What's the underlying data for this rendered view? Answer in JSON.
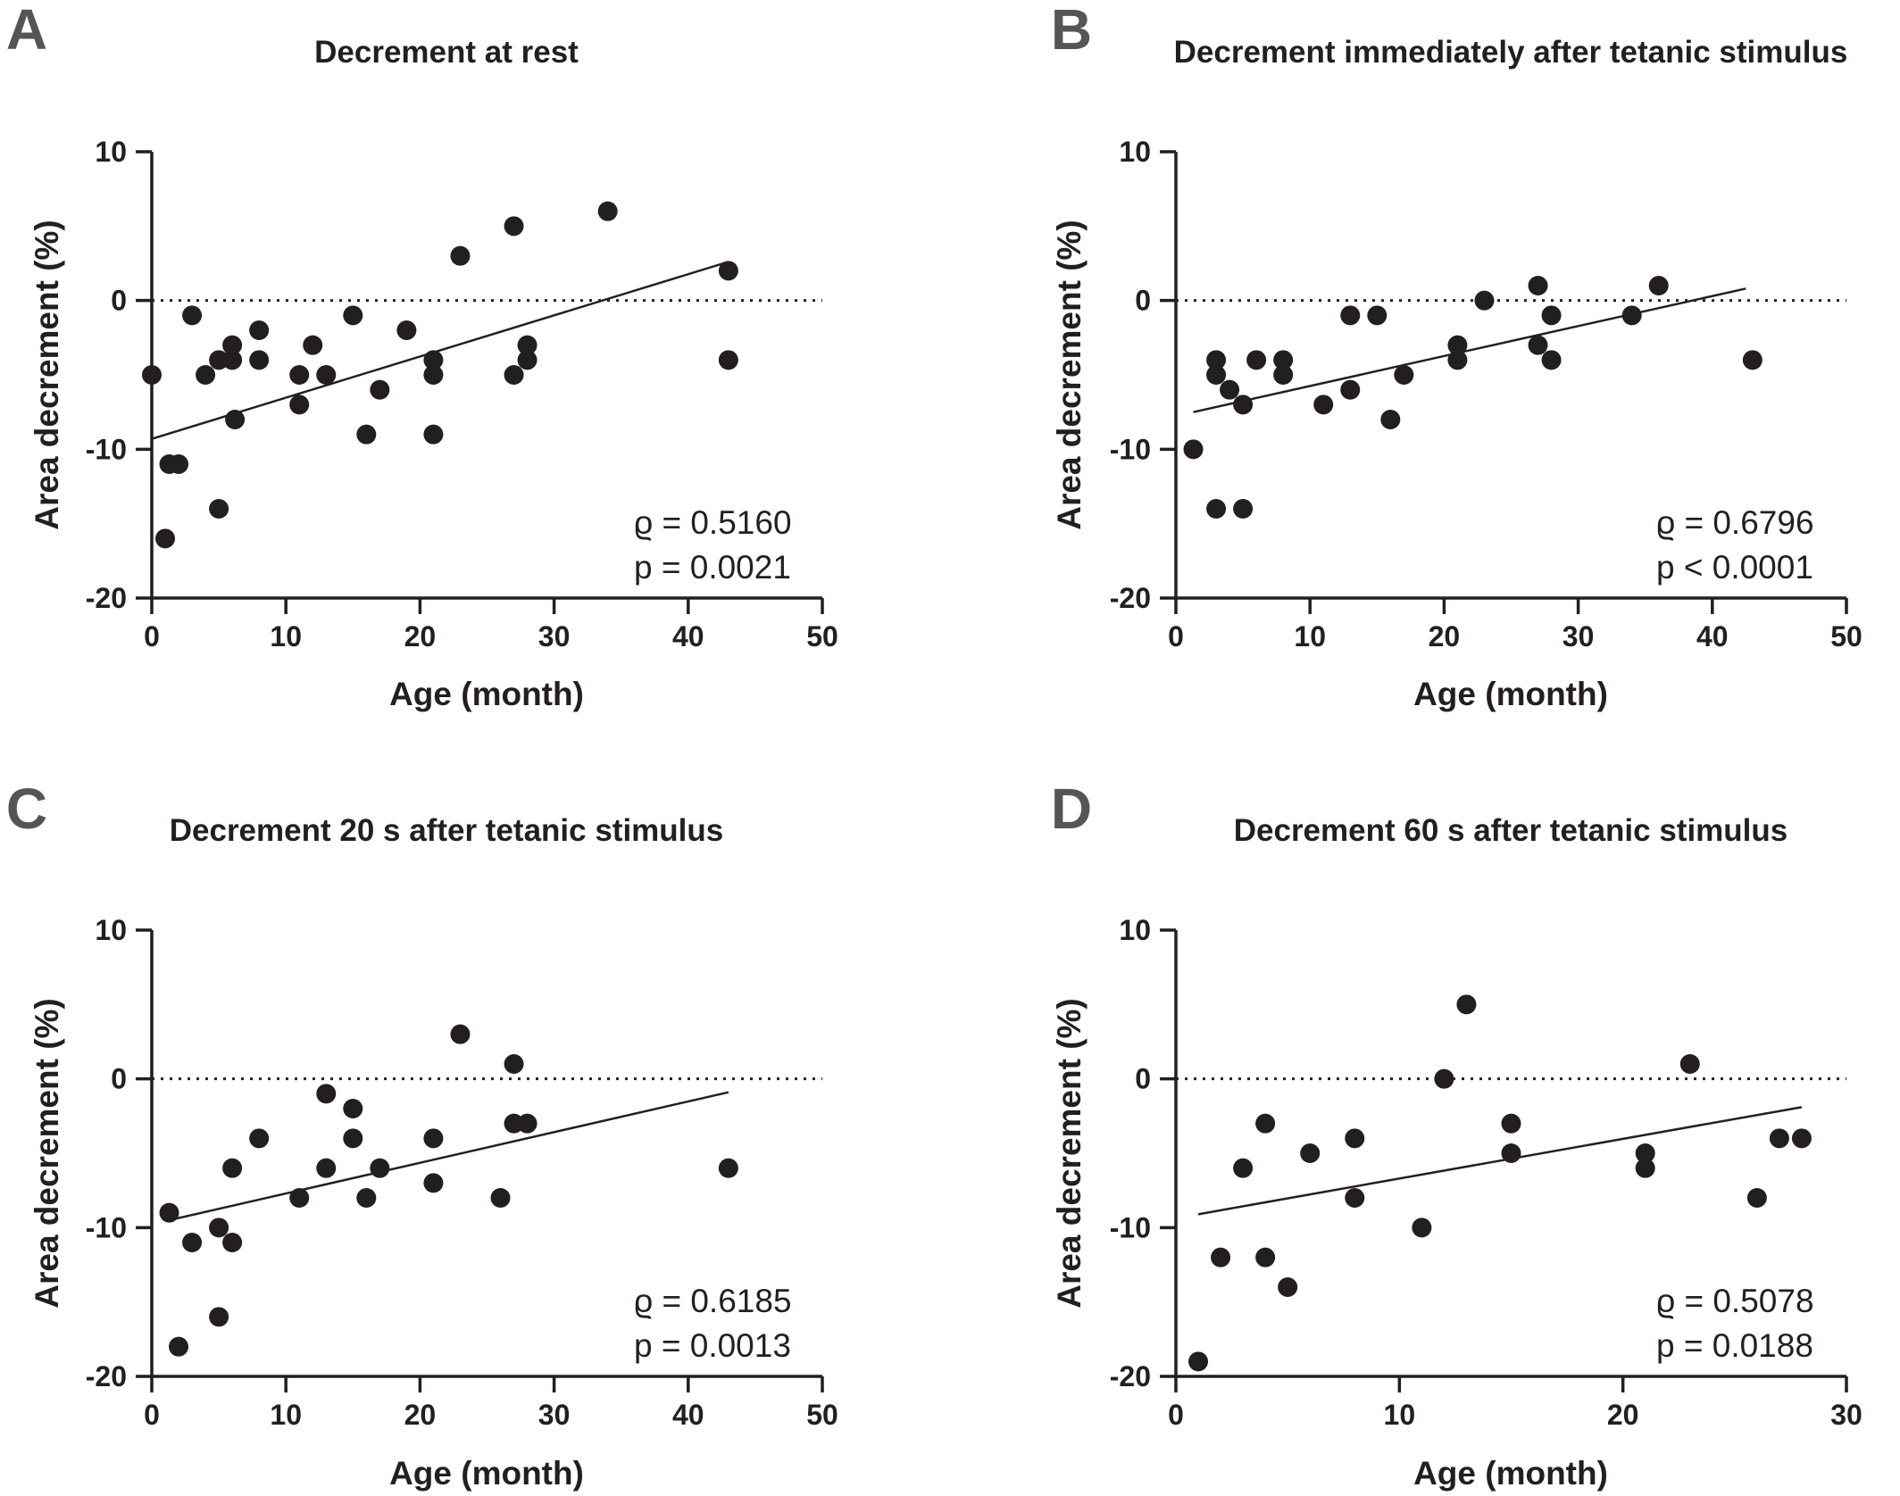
{
  "chart_data": [
    {
      "panel": "A",
      "type": "scatter",
      "title": "Decrement at rest",
      "xlabel": "Age (month)",
      "ylabel": "Area decrement (%)",
      "xlim": [
        0,
        50
      ],
      "ylim": [
        -20,
        10
      ],
      "xticks": [
        0,
        10,
        20,
        30,
        40,
        50
      ],
      "yticks": [
        10,
        0,
        -10,
        -20
      ],
      "reference_line_y": 0,
      "stats": [
        "ϱ = 0.5160",
        "p = 0.0021"
      ],
      "points": [
        [
          0,
          -5
        ],
        [
          1,
          -16
        ],
        [
          1.3,
          -11
        ],
        [
          2,
          -11
        ],
        [
          3,
          -1
        ],
        [
          4,
          -5
        ],
        [
          5,
          -4
        ],
        [
          5,
          -14
        ],
        [
          6,
          -3
        ],
        [
          6,
          -4
        ],
        [
          6.2,
          -8
        ],
        [
          8,
          -2
        ],
        [
          8,
          -4
        ],
        [
          11,
          -5
        ],
        [
          11,
          -7
        ],
        [
          12,
          -3
        ],
        [
          13,
          -5
        ],
        [
          15,
          -1
        ],
        [
          16,
          -9
        ],
        [
          17,
          -6
        ],
        [
          19,
          -2
        ],
        [
          21,
          -4
        ],
        [
          21,
          -5
        ],
        [
          21,
          -9
        ],
        [
          23,
          3
        ],
        [
          27,
          5
        ],
        [
          27,
          -5
        ],
        [
          28,
          -3
        ],
        [
          28,
          -4
        ],
        [
          34,
          6
        ],
        [
          43,
          2
        ],
        [
          43,
          -4
        ]
      ],
      "fit": {
        "x": [
          0,
          43
        ],
        "y": [
          -9.3,
          2.6
        ]
      }
    },
    {
      "panel": "B",
      "type": "scatter",
      "title": "Decrement immediately after tetanic stimulus",
      "xlabel": "Age (month)",
      "ylabel": "Area decrement (%)",
      "xlim": [
        0,
        50
      ],
      "ylim": [
        -20,
        10
      ],
      "xticks": [
        0,
        10,
        20,
        30,
        40,
        50
      ],
      "yticks": [
        10,
        0,
        -10,
        -20
      ],
      "reference_line_y": 0,
      "stats": [
        "ϱ = 0.6796",
        "p < 0.0001"
      ],
      "points": [
        [
          1.3,
          -10
        ],
        [
          3,
          -4
        ],
        [
          3,
          -5
        ],
        [
          3,
          -14
        ],
        [
          4,
          -6
        ],
        [
          5,
          -7
        ],
        [
          5,
          -14
        ],
        [
          6,
          -4
        ],
        [
          8,
          -4
        ],
        [
          8,
          -5
        ],
        [
          11,
          -7
        ],
        [
          13,
          -1
        ],
        [
          13,
          -6
        ],
        [
          15,
          -1
        ],
        [
          16,
          -8
        ],
        [
          17,
          -5
        ],
        [
          21,
          -3
        ],
        [
          21,
          -4
        ],
        [
          23,
          0
        ],
        [
          27,
          1
        ],
        [
          27,
          -3
        ],
        [
          28,
          -1
        ],
        [
          28,
          -4
        ],
        [
          34,
          -1
        ],
        [
          36,
          1
        ],
        [
          43,
          -4
        ]
      ],
      "fit": {
        "x": [
          1.3,
          42.5
        ],
        "y": [
          -7.5,
          0.8
        ]
      }
    },
    {
      "panel": "C",
      "type": "scatter",
      "title": "Decrement 20 s after tetanic stimulus",
      "xlabel": "Age (month)",
      "ylabel": "Area decrement (%)",
      "xlim": [
        0,
        50
      ],
      "ylim": [
        -20,
        10
      ],
      "xticks": [
        0,
        10,
        20,
        30,
        40,
        50
      ],
      "yticks": [
        10,
        0,
        -10,
        -20
      ],
      "reference_line_y": 0,
      "stats": [
        "ϱ = 0.6185",
        "p = 0.0013"
      ],
      "points": [
        [
          1.3,
          -9
        ],
        [
          2,
          -18
        ],
        [
          3,
          -11
        ],
        [
          5,
          -10
        ],
        [
          5,
          -16
        ],
        [
          6,
          -6
        ],
        [
          6,
          -11
        ],
        [
          8,
          -4
        ],
        [
          11,
          -8
        ],
        [
          13,
          -1
        ],
        [
          13,
          -6
        ],
        [
          15,
          -2
        ],
        [
          15,
          -4
        ],
        [
          16,
          -8
        ],
        [
          17,
          -6
        ],
        [
          21,
          -4
        ],
        [
          21,
          -7
        ],
        [
          23,
          3
        ],
        [
          26,
          -8
        ],
        [
          27,
          1
        ],
        [
          27,
          -3
        ],
        [
          28,
          -3
        ],
        [
          43,
          -6
        ]
      ],
      "fit": {
        "x": [
          1.3,
          43
        ],
        "y": [
          -9.5,
          -0.9
        ]
      }
    },
    {
      "panel": "D",
      "type": "scatter",
      "title": "Decrement 60 s after tetanic stimulus",
      "xlabel": "Age (month)",
      "ylabel": "Area decrement (%)",
      "xlim": [
        0,
        30
      ],
      "ylim": [
        -20,
        10
      ],
      "xticks": [
        0,
        10,
        20,
        30
      ],
      "yticks": [
        10,
        0,
        -10,
        -20
      ],
      "reference_line_y": 0,
      "stats": [
        "ϱ = 0.5078",
        "p = 0.0188"
      ],
      "points": [
        [
          1,
          -19
        ],
        [
          2,
          -12
        ],
        [
          3,
          -6
        ],
        [
          4,
          -3
        ],
        [
          4,
          -12
        ],
        [
          5,
          -14
        ],
        [
          6,
          -5
        ],
        [
          8,
          -4
        ],
        [
          8,
          -8
        ],
        [
          11,
          -10
        ],
        [
          12,
          0
        ],
        [
          13,
          5
        ],
        [
          15,
          -3
        ],
        [
          15,
          -5
        ],
        [
          21,
          -5
        ],
        [
          21,
          -6
        ],
        [
          23,
          1
        ],
        [
          26,
          -8
        ],
        [
          27,
          -4
        ],
        [
          28,
          -4
        ]
      ],
      "fit": {
        "x": [
          1,
          28
        ],
        "y": [
          -9.1,
          -1.9
        ]
      }
    }
  ]
}
